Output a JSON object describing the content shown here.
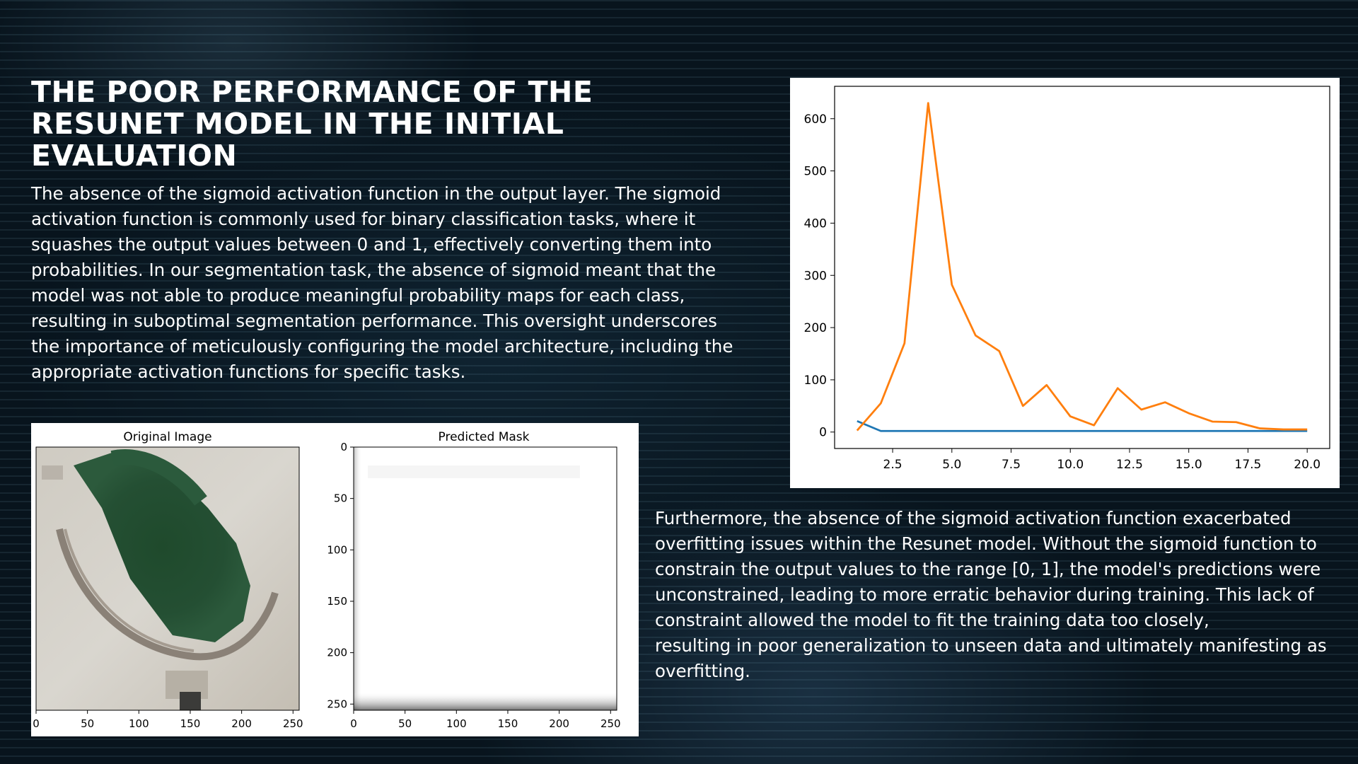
{
  "slide": {
    "title": "THE POOR PERFORMANCE OF THE RESUNET MODEL IN THE INITIAL EVALUATION",
    "paragraph1_lines": [
      " The absence of the sigmoid activation function in the output layer. The sigmoid",
      "activation function is commonly used for binary classification tasks, where it",
      "squashes the output values between 0 and 1, effectively converting them into",
      "probabilities. In our segmentation task, the absence of sigmoid meant that the",
      "model was not able to produce meaningful probability maps for each class,",
      "resulting in suboptimal segmentation performance. This oversight underscores",
      "the importance of meticulously configuring the model architecture, including the",
      "appropriate activation functions for specific tasks."
    ],
    "paragraph2_lines": [
      "Furthermore, the absence of the sigmoid activation function exacerbated",
      "overfitting issues within the Resunet model. Without the sigmoid function to",
      "constrain the output values to the range [0, 1], the model's predictions were",
      "unconstrained, leading to more erratic behavior during training. This lack of",
      "constraint allowed the model to fit the training data too closely,",
      "resulting in poor generalization to unseen data and ultimately manifesting as",
      "overfitting."
    ]
  },
  "chart_data": [
    {
      "type": "line",
      "title": "",
      "xlabel": "",
      "ylabel": "",
      "xlim": [
        0.05,
        20.95
      ],
      "ylim": [
        -31.5,
        662
      ],
      "x_ticks": [
        2.5,
        5.0,
        7.5,
        10.0,
        12.5,
        15.0,
        17.5,
        20.0
      ],
      "y_ticks": [
        0,
        100,
        200,
        300,
        400,
        500,
        600
      ],
      "x_tick_labels": [
        "2.5",
        "5.0",
        "7.5",
        "10.0",
        "12.5",
        "15.0",
        "17.5",
        "20.0"
      ],
      "y_tick_labels": [
        "0",
        "100",
        "200",
        "300",
        "400",
        "500",
        "600"
      ],
      "grid": false,
      "x": [
        1,
        2,
        3,
        4,
        5,
        6,
        7,
        8,
        9,
        10,
        11,
        12,
        13,
        14,
        15,
        16,
        17,
        18,
        19,
        20
      ],
      "series": [
        {
          "color": "#1f77b4",
          "values": [
            21,
            2,
            2,
            2,
            2,
            2,
            2,
            2,
            2,
            2,
            2,
            2,
            2,
            2,
            2,
            2,
            2,
            2,
            2,
            2
          ]
        },
        {
          "color": "#ff7f0e",
          "values": [
            3,
            55,
            170,
            630,
            282,
            185,
            155,
            50,
            90,
            30,
            13,
            84,
            43,
            57,
            36,
            20,
            19,
            7,
            5,
            5
          ]
        }
      ]
    },
    {
      "type": "image",
      "title": "Original Image",
      "xlim": [
        0,
        256
      ],
      "ylim": [
        256,
        0
      ],
      "x_ticks": [
        0,
        50,
        100,
        150,
        200,
        250
      ],
      "x_tick_labels": [
        "0",
        "50",
        "100",
        "150",
        "200",
        "250"
      ]
    },
    {
      "type": "image",
      "title": "Predicted Mask",
      "xlim": [
        0,
        256
      ],
      "ylim": [
        256,
        0
      ],
      "x_ticks": [
        0,
        50,
        100,
        150,
        200,
        250
      ],
      "y_ticks": [
        0,
        50,
        100,
        150,
        200,
        250
      ],
      "x_tick_labels": [
        "0",
        "50",
        "100",
        "150",
        "200",
        "250"
      ],
      "y_tick_labels": [
        "0",
        "50",
        "100",
        "150",
        "200",
        "250"
      ]
    }
  ]
}
